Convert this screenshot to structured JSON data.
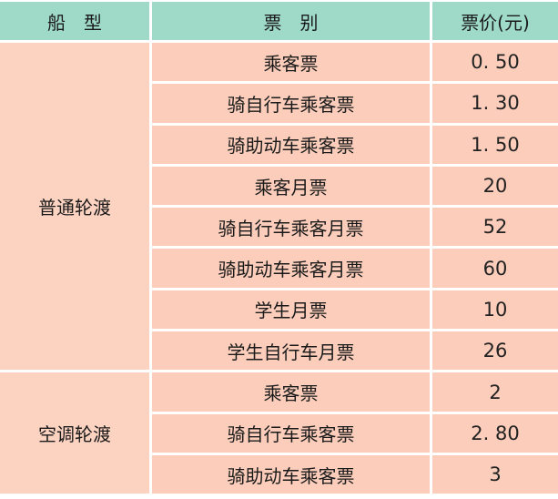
{
  "header": {
    "ship_type": "船　型",
    "ticket_type": "票　别",
    "price": "票价(元)"
  },
  "groups": [
    {
      "name": "普通轮渡",
      "rows": [
        {
          "ticket": "乘客票",
          "price": "0. 50"
        },
        {
          "ticket": "骑自行车乘客票",
          "price": "1. 30"
        },
        {
          "ticket": "骑助动车乘客票",
          "price": "1. 50"
        },
        {
          "ticket": "乘客月票",
          "price": "20"
        },
        {
          "ticket": "骑自行车乘客月票",
          "price": "52"
        },
        {
          "ticket": "骑助动车乘客月票",
          "price": "60"
        },
        {
          "ticket": "学生月票",
          "price": "10"
        },
        {
          "ticket": "学生自行车月票",
          "price": "26"
        }
      ]
    },
    {
      "name": "空调轮渡",
      "rows": [
        {
          "ticket": "乘客票",
          "price": "2"
        },
        {
          "ticket": "骑自行车乘客票",
          "price": "2. 80"
        },
        {
          "ticket": "骑助动车乘客票",
          "price": "3"
        }
      ]
    }
  ],
  "colors": {
    "header": "#9fdac9",
    "body": "#fbcdba",
    "border": "#ffffff"
  }
}
